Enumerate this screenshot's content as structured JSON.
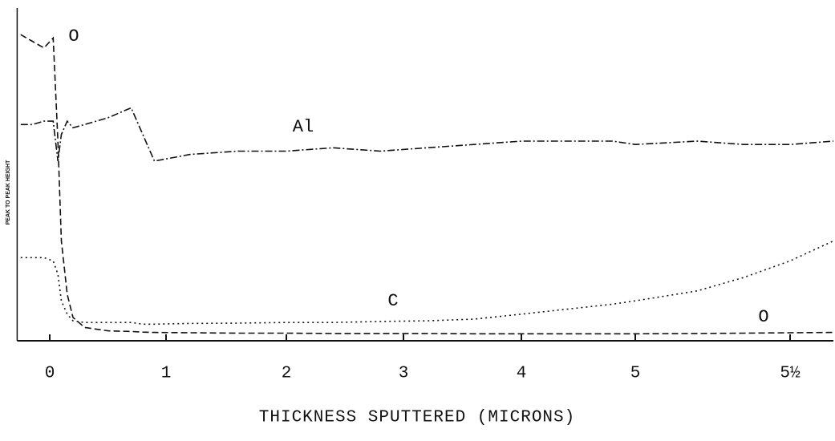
{
  "chart_data": {
    "type": "line",
    "xlabel": "THICKNESS SPUTTERED (MICRONS)",
    "ylabel": "PEAK TO PEAK HEIGHT",
    "x": [
      -0.25,
      -0.15,
      -0.05,
      0.03,
      0.07,
      0.1,
      0.15,
      0.2,
      0.3,
      0.5,
      0.7,
      0.8,
      0.9,
      1.2,
      1.6,
      2,
      2.4,
      2.8,
      3.2,
      3.6,
      4,
      4.4,
      4.8,
      5,
      5.2,
      5.35,
      5.5,
      5.64
    ],
    "series": [
      {
        "name": "O",
        "color": "#111111",
        "dash": "8 4",
        "values": [
          92,
          90,
          88,
          91,
          60,
          30,
          14,
          7,
          4,
          3,
          2.8,
          2.6,
          2.5,
          2.4,
          2.3,
          2.3,
          2.2,
          2.2,
          2.2,
          2.1,
          2.1,
          2.1,
          2.1,
          2.1,
          2.2,
          2.3,
          2.4,
          2.5
        ]
      },
      {
        "name": "Al",
        "color": "#111111",
        "dash": "9 3 2 3",
        "values": [
          65,
          65,
          66,
          66,
          54,
          62,
          66,
          64,
          65,
          67,
          70,
          62,
          54,
          56,
          57,
          57,
          58,
          57,
          58,
          59,
          60,
          60,
          60,
          59,
          60,
          59,
          59,
          60
        ]
      },
      {
        "name": "C",
        "color": "#111111",
        "dash": "2 4",
        "values": [
          25,
          25,
          25,
          24,
          20,
          12,
          8,
          6,
          5.5,
          5.5,
          5.5,
          5,
          5,
          5.2,
          5.3,
          5.5,
          5.5,
          5.8,
          6,
          6.5,
          8,
          9.5,
          11,
          12,
          15,
          19,
          24,
          30
        ]
      }
    ],
    "annotations": [
      "O",
      "Al",
      "C",
      "O"
    ],
    "xlim": [
      -0.28,
      5.64
    ],
    "xticks": [
      0,
      1,
      2,
      3,
      4,
      5,
      {
        "value": 5.5,
        "label": "5½"
      }
    ],
    "ylim": [
      0,
      100
    ]
  }
}
